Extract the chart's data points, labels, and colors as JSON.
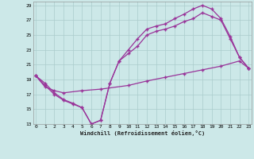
{
  "xlabel": "Windchill (Refroidissement éolien,°C)",
  "xlim": [
    0,
    23
  ],
  "ylim": [
    13,
    29
  ],
  "yticks": [
    13,
    15,
    17,
    19,
    21,
    23,
    25,
    27,
    29
  ],
  "xticks": [
    0,
    1,
    2,
    3,
    4,
    5,
    6,
    7,
    8,
    9,
    10,
    11,
    12,
    13,
    14,
    15,
    16,
    17,
    18,
    19,
    20,
    21,
    22,
    23
  ],
  "bg_color": "#cce8e8",
  "grid_color": "#aacccc",
  "line_color": "#993399",
  "line1_x": [
    0,
    1,
    2,
    3,
    4,
    5,
    6,
    7,
    8,
    9,
    10,
    11,
    12,
    13,
    14,
    15,
    16,
    17,
    18,
    19,
    20,
    21,
    22,
    23
  ],
  "line1_y": [
    19.5,
    18.5,
    17.2,
    16.3,
    15.8,
    15.2,
    13.0,
    13.5,
    18.5,
    21.5,
    23.0,
    24.5,
    25.8,
    26.2,
    26.5,
    27.2,
    27.8,
    28.5,
    29.0,
    28.5,
    27.2,
    24.8,
    22.0,
    20.5
  ],
  "line2_x": [
    0,
    1,
    2,
    3,
    4,
    5,
    6,
    7,
    8,
    9,
    10,
    11,
    12,
    13,
    14,
    15,
    16,
    17,
    18,
    19,
    20,
    21,
    22,
    23
  ],
  "line2_y": [
    19.5,
    18.2,
    17.0,
    16.2,
    15.7,
    15.2,
    13.0,
    13.5,
    18.5,
    21.5,
    22.5,
    23.5,
    25.0,
    25.5,
    25.8,
    26.2,
    26.8,
    27.2,
    28.0,
    27.5,
    27.0,
    24.5,
    22.0,
    20.5
  ],
  "line3_x": [
    0,
    1,
    2,
    3,
    5,
    7,
    10,
    12,
    14,
    16,
    18,
    20,
    22,
    23
  ],
  "line3_y": [
    19.5,
    18.0,
    17.5,
    17.2,
    17.5,
    17.7,
    18.2,
    18.8,
    19.3,
    19.8,
    20.3,
    20.8,
    21.5,
    20.5
  ]
}
